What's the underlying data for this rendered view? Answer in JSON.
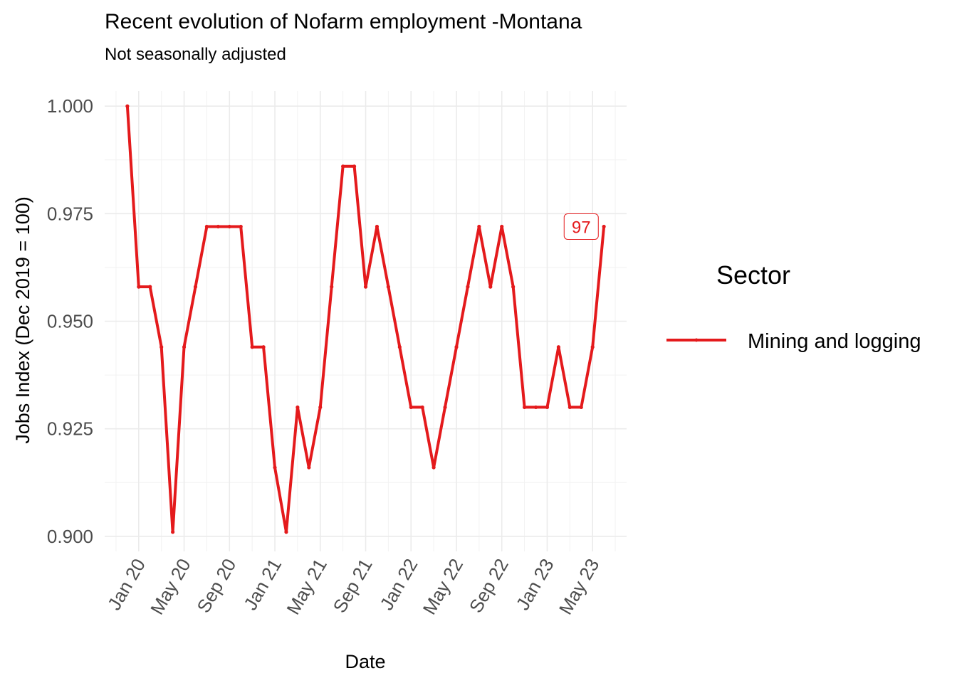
{
  "chart_data": {
    "type": "line",
    "title": "Recent evolution of Nofarm employment -Montana",
    "subtitle": "Not seasonally adjusted",
    "xlabel": "Date",
    "ylabel": "Jobs Index (Dec 2019 = 100)",
    "x_tick_labels": [
      "Jan 20",
      "May 20",
      "Sep 20",
      "Jan 21",
      "May 21",
      "Sep 21",
      "Jan 22",
      "May 22",
      "Sep 22",
      "Jan 23",
      "May 23"
    ],
    "x_ticks_dates": [
      "2020-01",
      "2020-05",
      "2020-09",
      "2021-01",
      "2021-05",
      "2021-09",
      "2022-01",
      "2022-05",
      "2022-09",
      "2023-01",
      "2023-05"
    ],
    "xlim": [
      "2019-10",
      "2023-08"
    ],
    "y_tick_labels": [
      "0.900",
      "0.925",
      "0.950",
      "0.975",
      "1.000"
    ],
    "y_ticks": [
      0.9,
      0.925,
      0.95,
      0.975,
      1.0
    ],
    "ylim": [
      0.8965,
      1.0035
    ],
    "grid": true,
    "legend": {
      "title": "Sector",
      "position": "right"
    },
    "series": [
      {
        "name": "Mining and logging",
        "color": "#e41a1c",
        "x": [
          "2019-12",
          "2020-01",
          "2020-02",
          "2020-03",
          "2020-04",
          "2020-05",
          "2020-06",
          "2020-07",
          "2020-08",
          "2020-09",
          "2020-10",
          "2020-11",
          "2020-12",
          "2021-01",
          "2021-02",
          "2021-03",
          "2021-04",
          "2021-05",
          "2021-06",
          "2021-07",
          "2021-08",
          "2021-09",
          "2021-10",
          "2021-11",
          "2021-12",
          "2022-01",
          "2022-02",
          "2022-03",
          "2022-04",
          "2022-05",
          "2022-06",
          "2022-07",
          "2022-08",
          "2022-09",
          "2022-10",
          "2022-11",
          "2022-12",
          "2023-01",
          "2023-02",
          "2023-03",
          "2023-04",
          "2023-05",
          "2023-06"
        ],
        "values": [
          1.0,
          0.958,
          0.958,
          0.944,
          0.901,
          0.944,
          0.958,
          0.972,
          0.972,
          0.972,
          0.972,
          0.944,
          0.944,
          0.916,
          0.901,
          0.93,
          0.916,
          0.93,
          0.958,
          0.986,
          0.986,
          0.958,
          0.972,
          0.958,
          0.944,
          0.93,
          0.93,
          0.916,
          0.93,
          0.944,
          0.958,
          0.972,
          0.958,
          0.972,
          0.958,
          0.93,
          0.93,
          0.93,
          0.944,
          0.93,
          0.93,
          0.944,
          0.972
        ]
      }
    ],
    "annotations": [
      {
        "x": "2023-04",
        "y": 0.972,
        "text": "97"
      }
    ]
  }
}
